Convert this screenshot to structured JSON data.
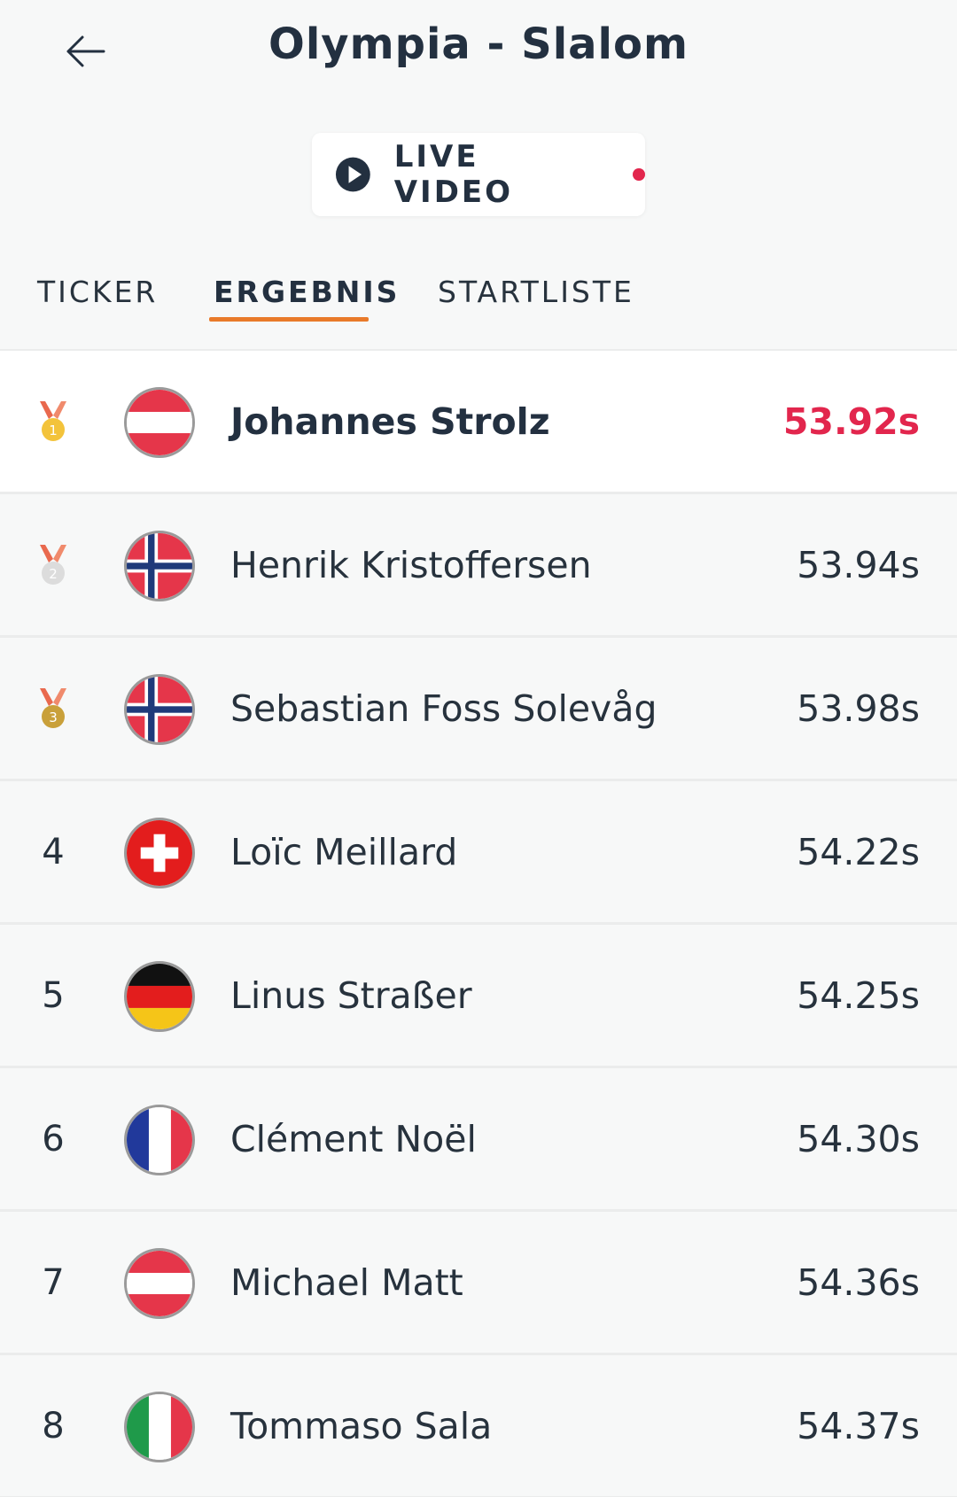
{
  "header": {
    "title": "Olympia - Slalom",
    "back_icon": "arrow-left-icon"
  },
  "live": {
    "label": "LIVE VIDEO",
    "icon": "play-circle-icon",
    "indicator_color": "#e2264d"
  },
  "tabs": [
    {
      "label": "TICKER",
      "active": false
    },
    {
      "label": "ERGEBNIS",
      "active": true
    },
    {
      "label": "STARTLISTE",
      "active": false
    }
  ],
  "colors": {
    "accent_underline": "#e97a2a",
    "leader_time": "#e2264d",
    "text": "#27323d"
  },
  "results": [
    {
      "rank": "1",
      "medal": "gold-medal-icon",
      "country": "Austria",
      "flag": "austria-flag-icon",
      "name": "Johannes Strolz",
      "time": "53.92s",
      "leader": true
    },
    {
      "rank": "2",
      "medal": "silver-medal-icon",
      "country": "Norway",
      "flag": "norway-flag-icon",
      "name": "Henrik Kristoffersen",
      "time": "53.94s",
      "leader": false
    },
    {
      "rank": "3",
      "medal": "bronze-medal-icon",
      "country": "Norway",
      "flag": "norway-flag-icon",
      "name": "Sebastian Foss Solevåg",
      "time": "53.98s",
      "leader": false
    },
    {
      "rank": "4",
      "medal": null,
      "country": "Switzerland",
      "flag": "switzerland-flag-icon",
      "name": "Loïc Meillard",
      "time": "54.22s",
      "leader": false
    },
    {
      "rank": "5",
      "medal": null,
      "country": "Germany",
      "flag": "germany-flag-icon",
      "name": "Linus Straßer",
      "time": "54.25s",
      "leader": false
    },
    {
      "rank": "6",
      "medal": null,
      "country": "France",
      "flag": "france-flag-icon",
      "name": "Clément Noël",
      "time": "54.30s",
      "leader": false
    },
    {
      "rank": "7",
      "medal": null,
      "country": "Austria",
      "flag": "austria-flag-icon",
      "name": "Michael Matt",
      "time": "54.36s",
      "leader": false
    },
    {
      "rank": "8",
      "medal": null,
      "country": "Italy",
      "flag": "italy-flag-icon",
      "name": "Tommaso Sala",
      "time": "54.37s",
      "leader": false
    }
  ]
}
